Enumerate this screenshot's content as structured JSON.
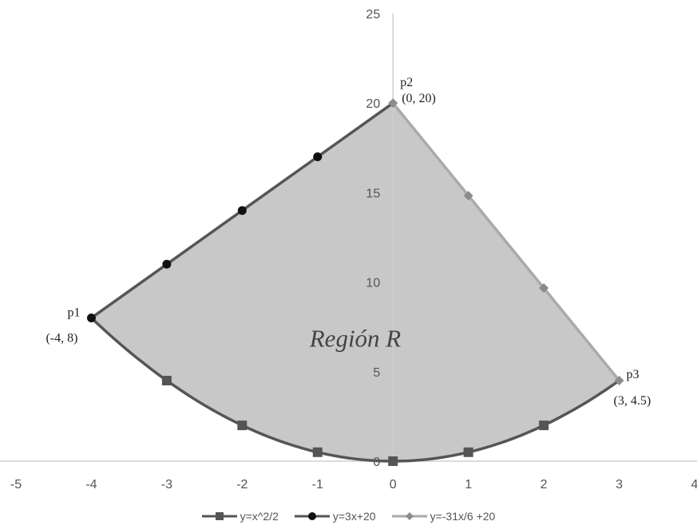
{
  "chart_data": {
    "type": "line",
    "title": "",
    "xlabel": "",
    "ylabel": "",
    "xlim": [
      -5,
      4
    ],
    "ylim": [
      0,
      25
    ],
    "x_ticks": [
      -5,
      -4,
      -3,
      -2,
      -1,
      0,
      1,
      2,
      3,
      4
    ],
    "y_ticks": [
      0,
      5,
      10,
      15,
      20,
      25
    ],
    "grid": false,
    "legend_position": "bottom",
    "region": {
      "label": "Región R",
      "fill_color": "#c8c8c8",
      "vertices": [
        [
          -4,
          8
        ],
        [
          0,
          20
        ],
        [
          3,
          4.5
        ]
      ]
    },
    "series": [
      {
        "name": "y=x^2/2",
        "color": "#555555",
        "marker": "square",
        "curve": "parabola",
        "points": [
          [
            -4,
            8
          ],
          [
            -3,
            4.5
          ],
          [
            -2,
            2
          ],
          [
            -1,
            0.5
          ],
          [
            0,
            0
          ],
          [
            1,
            0.5
          ],
          [
            2,
            2
          ],
          [
            3,
            4.5
          ]
        ],
        "markers_x": [
          -3,
          -2,
          -1,
          0,
          1,
          2
        ]
      },
      {
        "name": "y=3x+20",
        "color": "#555555",
        "marker": "circle",
        "marker_color": "#111111",
        "curve": "line",
        "points": [
          [
            -4,
            8
          ],
          [
            -3,
            11
          ],
          [
            -2,
            14
          ],
          [
            -1,
            17
          ],
          [
            0,
            20
          ]
        ],
        "markers_x": [
          -4,
          -3,
          -2,
          -1
        ]
      },
      {
        "name": "y=-31x/6 +20",
        "color": "#aaaaaa",
        "marker": "diamond",
        "marker_color": "#8c8c8c",
        "curve": "line",
        "points": [
          [
            0,
            20
          ],
          [
            1,
            14.83
          ],
          [
            2,
            9.67
          ],
          [
            3,
            4.5
          ]
        ],
        "markers_x": [
          0,
          1,
          2,
          3
        ]
      }
    ],
    "annotations": [
      {
        "name": "p1",
        "coord": "(-4, 8)",
        "x": -4,
        "y": 8
      },
      {
        "name": "p2",
        "coord": "(0, 20)",
        "x": 0,
        "y": 20
      },
      {
        "name": "p3",
        "coord": "(3, 4.5)",
        "x": 3,
        "y": 4.5
      }
    ]
  }
}
